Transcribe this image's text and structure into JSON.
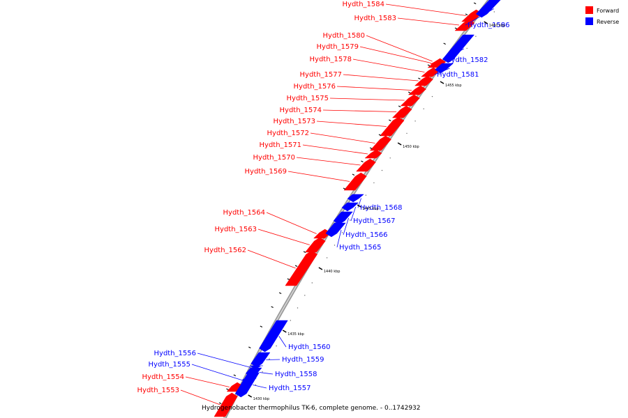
{
  "caption": "Hydrogenobacter thermophilus TK-6, complete genome. - 0..1742932",
  "legend": [
    {
      "label": "Forward",
      "color": "#ff0000"
    },
    {
      "label": "Reverse",
      "color": "#0000ff"
    }
  ],
  "colors": {
    "forward": "#ff0000",
    "reverse": "#0000ff",
    "backbone": "#808080"
  },
  "ticks": [
    "1430 kbp",
    "1435 kbp",
    "1440 kbp",
    "1445 kbp",
    "1450 kbp",
    "1455 kbp",
    "1460 kbp"
  ],
  "genes": [
    {
      "name": "Hydth_1553",
      "strand": "forward"
    },
    {
      "name": "Hydth_1554",
      "strand": "forward"
    },
    {
      "name": "Hydth_1555",
      "strand": "reverse"
    },
    {
      "name": "Hydth_1556",
      "strand": "reverse"
    },
    {
      "name": "Hydth_1557",
      "strand": "reverse"
    },
    {
      "name": "Hydth_1558",
      "strand": "reverse"
    },
    {
      "name": "Hydth_1559",
      "strand": "reverse"
    },
    {
      "name": "Hydth_1560",
      "strand": "reverse"
    },
    {
      "name": "Hydth_1562",
      "strand": "forward"
    },
    {
      "name": "Hydth_1563",
      "strand": "forward"
    },
    {
      "name": "Hydth_1564",
      "strand": "forward"
    },
    {
      "name": "Hydth_1565",
      "strand": "reverse"
    },
    {
      "name": "Hydth_1566",
      "strand": "reverse"
    },
    {
      "name": "Hydth_1567",
      "strand": "reverse"
    },
    {
      "name": "Hydth_1568",
      "strand": "reverse"
    },
    {
      "name": "Hydth_1569",
      "strand": "forward"
    },
    {
      "name": "Hydth_1570",
      "strand": "forward"
    },
    {
      "name": "Hydth_1571",
      "strand": "forward"
    },
    {
      "name": "Hydth_1572",
      "strand": "forward"
    },
    {
      "name": "Hydth_1573",
      "strand": "forward"
    },
    {
      "name": "Hydth_1574",
      "strand": "forward"
    },
    {
      "name": "Hydth_1575",
      "strand": "forward"
    },
    {
      "name": "Hydth_1576",
      "strand": "forward"
    },
    {
      "name": "Hydth_1577",
      "strand": "forward"
    },
    {
      "name": "Hydth_1578",
      "strand": "forward"
    },
    {
      "name": "Hydth_1579",
      "strand": "forward"
    },
    {
      "name": "Hydth_1580",
      "strand": "forward"
    },
    {
      "name": "Hydth_1581",
      "strand": "reverse"
    },
    {
      "name": "Hydth_1582",
      "strand": "reverse"
    },
    {
      "name": "Hydth_1583",
      "strand": "forward"
    },
    {
      "name": "Hydth_1584",
      "strand": "forward"
    },
    {
      "name": "Hydth_1586",
      "strand": "reverse"
    }
  ]
}
